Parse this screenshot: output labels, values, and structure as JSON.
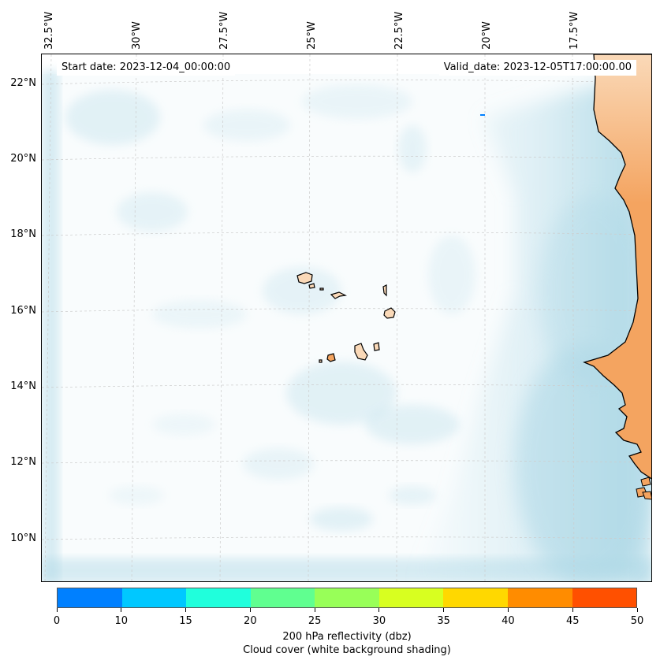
{
  "header": {
    "start_date": "Start date: 2023-12-04_00:00:00",
    "valid_date": "Valid_date: 2023-12-05T17:00:00.00"
  },
  "map": {
    "lon_labels": [
      "32.5°W",
      "30°W",
      "27.5°W",
      "25°W",
      "22.5°W",
      "20°W",
      "17.5°W"
    ],
    "lat_labels": [
      "22°N",
      "20°N",
      "18°N",
      "16°N",
      "14°N",
      "12°N",
      "10°N"
    ],
    "lon_range": [
      -33,
      -15.5
    ],
    "lat_range": [
      9,
      22.5
    ],
    "gridlines": true,
    "colors": {
      "land": "#f4a460",
      "land_light": "#fad9b8",
      "cloud": "#add8e6",
      "coastline": "#000000",
      "grid": "#cccccc"
    }
  },
  "colorbar": {
    "ticks": [
      "0",
      "10",
      "15",
      "20",
      "25",
      "30",
      "35",
      "40",
      "45",
      "50"
    ],
    "colors": [
      "#0080ff",
      "#00c8ff",
      "#20ffdc",
      "#60ff90",
      "#98ff58",
      "#d8ff20",
      "#ffd800",
      "#ff8c00",
      "#ff5000"
    ],
    "label_line1": "200 hPa reflectivity (dbz)",
    "label_line2": "Cloud cover (white background shading)"
  }
}
